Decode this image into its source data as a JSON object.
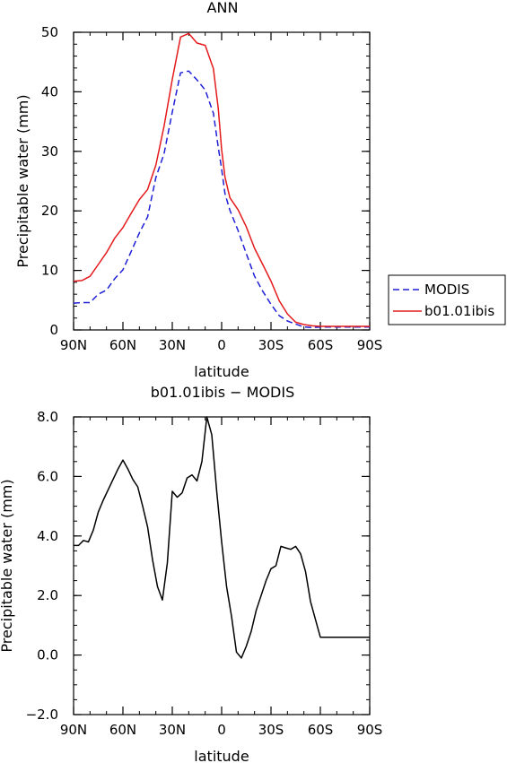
{
  "chart_data": [
    {
      "type": "line",
      "title": "ANN",
      "xlabel": "latitude",
      "ylabel": "Precipitable water (mm)",
      "xlim": [
        90,
        -90
      ],
      "ylim": [
        0,
        50
      ],
      "x_axis_orientation": "90N on left to 90S on right (south is negative latitude)",
      "xticks": [
        90,
        60,
        30,
        0,
        -30,
        -60,
        -90
      ],
      "xtick_labels": [
        "90N",
        "60N",
        "30N",
        "0",
        "30S",
        "60S",
        "90S"
      ],
      "yticks": [
        0,
        10,
        20,
        30,
        40,
        50
      ],
      "ytick_labels": [
        "0",
        "10",
        "20",
        "30",
        "40",
        "50"
      ],
      "legend": "outside-right",
      "x": [
        90,
        85,
        80,
        75,
        70,
        65,
        60,
        55,
        50,
        45,
        40,
        35,
        30,
        25,
        20,
        15,
        10,
        5,
        2,
        0,
        -2,
        -5,
        -10,
        -15,
        -20,
        -25,
        -30,
        -35,
        -40,
        -45,
        -50,
        -55,
        -60,
        -65,
        -70,
        -75,
        -80,
        -85,
        -90
      ],
      "series": [
        {
          "name": "MODIS",
          "color": "#1f1fd6",
          "dash": "dashed",
          "values": [
            4.5,
            4.6,
            4.6,
            6.0,
            6.7,
            8.6,
            10.1,
            13.2,
            16.3,
            19.0,
            25.6,
            29.6,
            36.6,
            43.2,
            43.5,
            42.0,
            40.3,
            36.4,
            30.6,
            27.0,
            22.9,
            20.1,
            16.7,
            12.8,
            9.0,
            6.5,
            4.3,
            2.4,
            1.5,
            1.0,
            0.5,
            0.4,
            0.5,
            0.5,
            0.5,
            0.5,
            0.5,
            0.5,
            0.5
          ]
        },
        {
          "name": "b01.01ibis",
          "color": "#e41a1c",
          "dash": "solid",
          "values": [
            8.2,
            8.3,
            9.0,
            11.0,
            13.0,
            15.4,
            17.2,
            19.6,
            21.9,
            23.6,
            27.7,
            34.2,
            42.1,
            49.2,
            49.8,
            48.2,
            47.8,
            43.9,
            37.1,
            30.3,
            25.7,
            22.2,
            20.2,
            17.3,
            13.7,
            11.0,
            8.2,
            4.9,
            2.7,
            1.3,
            0.9,
            0.7,
            0.6,
            0.6,
            0.6,
            0.6,
            0.6,
            0.6,
            0.6
          ]
        }
      ]
    },
    {
      "type": "line",
      "title": "b01.01ibis − MODIS",
      "xlabel": "latitude",
      "ylabel": "Precipitable water (mm)",
      "xlim": [
        90,
        -90
      ],
      "ylim": [
        -2.0,
        8.0
      ],
      "xticks": [
        90,
        60,
        30,
        0,
        -30,
        -60,
        -90
      ],
      "xtick_labels": [
        "90N",
        "60N",
        "30N",
        "0",
        "30S",
        "60S",
        "90S"
      ],
      "yticks": [
        -2.0,
        0.0,
        2.0,
        4.0,
        6.0,
        8.0
      ],
      "ytick_labels": [
        "−2.0",
        "0.0",
        "2.0",
        "4.0",
        "6.0",
        "8.0"
      ],
      "x": [
        90,
        87,
        84,
        81,
        78,
        75,
        72,
        69,
        66,
        63,
        60,
        57,
        54,
        51,
        48,
        45,
        42,
        39,
        36,
        33,
        30,
        27,
        24,
        21,
        18,
        15,
        12,
        9,
        6,
        3,
        0,
        -3,
        -6,
        -9,
        -12,
        -15,
        -18,
        -21,
        -24,
        -27,
        -30,
        -33,
        -36,
        -39,
        -42,
        -45,
        -48,
        -51,
        -54,
        -57,
        -60,
        -63,
        -66,
        -69,
        -72,
        -75,
        -78,
        -81,
        -84,
        -87,
        -90
      ],
      "series": [
        {
          "name": "",
          "color": "#000000",
          "dash": "solid",
          "values": [
            3.68,
            3.68,
            3.85,
            3.8,
            4.2,
            4.8,
            5.2,
            5.55,
            5.9,
            6.25,
            6.55,
            6.25,
            5.9,
            5.65,
            5.0,
            4.3,
            3.2,
            2.3,
            1.85,
            3.1,
            5.5,
            5.3,
            5.45,
            5.95,
            6.05,
            5.85,
            6.5,
            8.0,
            7.4,
            5.5,
            3.8,
            2.3,
            1.3,
            0.1,
            -0.1,
            0.3,
            0.8,
            1.5,
            2.0,
            2.5,
            2.9,
            3.0,
            3.65,
            3.6,
            3.55,
            3.65,
            3.4,
            2.8,
            1.8,
            1.2,
            0.6,
            0.6,
            0.6,
            0.6,
            0.6,
            0.6,
            0.6,
            0.6,
            0.6,
            0.6,
            0.6
          ]
        }
      ]
    }
  ]
}
